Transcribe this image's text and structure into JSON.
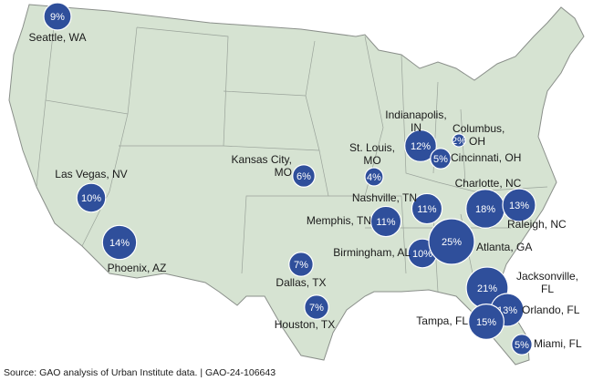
{
  "chart_data": {
    "type": "bubble-map",
    "categories": [
      "Seattle, WA",
      "Las Vegas, NV",
      "Phoenix, AZ",
      "Kansas City, MO",
      "St. Louis, MO",
      "Indianapolis, IN",
      "Columbus, OH",
      "Cincinnati, OH",
      "Nashville, TN",
      "Memphis, TN",
      "Birmingham, AL",
      "Atlanta, GA",
      "Charlotte, NC",
      "Raleigh, NC",
      "Jacksonville, FL",
      "Orlando, FL",
      "Tampa, FL",
      "Miami, FL",
      "Dallas, TX",
      "Houston, TX"
    ],
    "values": [
      9,
      10,
      14,
      6,
      4,
      12,
      2,
      5,
      11,
      11,
      10,
      25,
      18,
      13,
      21,
      13,
      15,
      5,
      7,
      7
    ],
    "value_labels": [
      "9%",
      "10%",
      "14%",
      "6%",
      "4%",
      "12%",
      "2%",
      "5%",
      "11%",
      "11%",
      "10%",
      "25%",
      "18%",
      "13%",
      "21%",
      "13%",
      "15%",
      "5%",
      "7%",
      "7%"
    ],
    "color": "#2f4f9b"
  },
  "source": "Source: GAO analysis of Urban Institute data.  |  GAO-24-106643"
}
